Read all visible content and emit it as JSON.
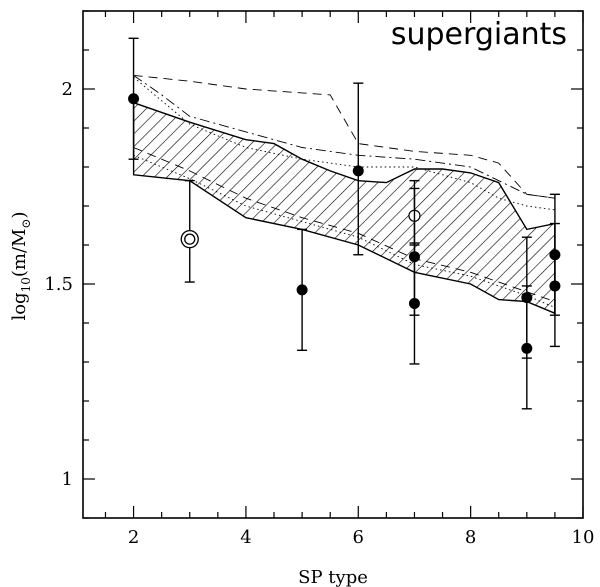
{
  "chart_data": {
    "type": "scatter",
    "title": "supergiants",
    "xlabel": "SP type",
    "ylabel": {
      "prefix": "log",
      "subscript": "10",
      "body": "(m/M",
      "sun": "⊙",
      "close": ")"
    },
    "xlim": [
      1.1,
      10.0
    ],
    "ylim": [
      0.9,
      2.2
    ],
    "x_ticks": [
      2,
      4,
      6,
      8,
      10
    ],
    "x_tick_labels": [
      "2",
      "4",
      "6",
      "8",
      "10"
    ],
    "y_ticks": [
      1,
      1.5,
      2
    ],
    "y_tick_labels": [
      "1",
      "1.5",
      "2"
    ],
    "x_minor_step": 0.5,
    "y_minor_step": 0.1,
    "band": {
      "name": "hatched model region",
      "upper": [
        [
          2.0,
          1.965
        ],
        [
          3.0,
          1.915
        ],
        [
          4.0,
          1.87
        ],
        [
          4.5,
          1.86
        ],
        [
          5.0,
          1.82
        ],
        [
          5.5,
          1.79
        ],
        [
          6.0,
          1.765
        ],
        [
          6.5,
          1.76
        ],
        [
          7.0,
          1.795
        ],
        [
          7.5,
          1.795
        ],
        [
          8.0,
          1.785
        ],
        [
          8.5,
          1.76
        ],
        [
          9.0,
          1.64
        ],
        [
          9.5,
          1.655
        ]
      ],
      "lower": [
        [
          2.0,
          1.78
        ],
        [
          3.0,
          1.765
        ],
        [
          4.0,
          1.67
        ],
        [
          5.0,
          1.64
        ],
        [
          6.0,
          1.6
        ],
        [
          7.0,
          1.53
        ],
        [
          8.0,
          1.5
        ],
        [
          8.5,
          1.46
        ],
        [
          9.0,
          1.455
        ],
        [
          9.5,
          1.425
        ]
      ]
    },
    "series": [
      {
        "name": "model dashed",
        "style": "dashed",
        "points": [
          [
            2.0,
            2.035
          ],
          [
            3.0,
            2.02
          ],
          [
            4.0,
            2.0
          ],
          [
            5.0,
            1.99
          ],
          [
            5.5,
            1.985
          ],
          [
            6.0,
            1.86
          ],
          [
            7.0,
            1.84
          ],
          [
            8.0,
            1.83
          ],
          [
            8.5,
            1.81
          ],
          [
            9.0,
            1.73
          ],
          [
            9.5,
            1.72
          ]
        ]
      },
      {
        "name": "model dash-dot",
        "style": "dashdot",
        "points": [
          [
            2.0,
            2.035
          ],
          [
            2.5,
            1.985
          ],
          [
            3.0,
            1.93
          ],
          [
            4.0,
            1.89
          ],
          [
            5.0,
            1.85
          ],
          [
            6.0,
            1.83
          ],
          [
            7.0,
            1.82
          ],
          [
            8.0,
            1.8
          ],
          [
            9.0,
            1.73
          ],
          [
            9.5,
            1.72
          ]
        ]
      },
      {
        "name": "model dotted",
        "style": "dotted",
        "points": [
          [
            2.0,
            2.03
          ],
          [
            3.0,
            1.91
          ],
          [
            4.0,
            1.85
          ],
          [
            5.0,
            1.82
          ],
          [
            6.0,
            1.8
          ],
          [
            7.0,
            1.8
          ],
          [
            8.0,
            1.76
          ],
          [
            8.5,
            1.72
          ],
          [
            9.0,
            1.7
          ],
          [
            9.5,
            1.69
          ]
        ]
      },
      {
        "name": "model dashed lower",
        "style": "dashed",
        "points": [
          [
            2.0,
            1.85
          ],
          [
            3.0,
            1.79
          ],
          [
            4.0,
            1.72
          ],
          [
            5.0,
            1.67
          ],
          [
            6.0,
            1.63
          ],
          [
            7.0,
            1.565
          ],
          [
            8.0,
            1.53
          ],
          [
            9.0,
            1.48
          ],
          [
            9.5,
            1.455
          ]
        ]
      },
      {
        "name": "model dotted lower",
        "style": "dotted",
        "points": [
          [
            2.0,
            1.83
          ],
          [
            3.0,
            1.77
          ],
          [
            4.0,
            1.7
          ],
          [
            5.0,
            1.66
          ],
          [
            6.0,
            1.62
          ],
          [
            7.0,
            1.55
          ],
          [
            8.0,
            1.52
          ],
          [
            9.0,
            1.47
          ],
          [
            9.5,
            1.44
          ]
        ]
      }
    ],
    "points": [
      {
        "x": 2.0,
        "y": 1.975,
        "err_low": 1.82,
        "err_high": 2.13,
        "marker": "filled"
      },
      {
        "x": 3.0,
        "y": 1.615,
        "err_low": 1.505,
        "err_high": 1.765,
        "marker": "double-circle"
      },
      {
        "x": 5.0,
        "y": 1.485,
        "err_low": 1.33,
        "err_high": 1.64,
        "marker": "filled"
      },
      {
        "x": 6.0,
        "y": 1.79,
        "err_low": 1.575,
        "err_high": 2.015,
        "marker": "filled"
      },
      {
        "x": 7.0,
        "y": 1.675,
        "err_low": 1.6,
        "err_high": 1.765,
        "marker": "open"
      },
      {
        "x": 7.0,
        "y": 1.57,
        "err_low": 1.42,
        "err_high": 1.745,
        "marker": "filled"
      },
      {
        "x": 7.0,
        "y": 1.45,
        "err_low": 1.295,
        "err_high": 1.605,
        "marker": "filled"
      },
      {
        "x": 9.0,
        "y": 1.465,
        "err_low": 1.31,
        "err_high": 1.62,
        "marker": "filled"
      },
      {
        "x": 9.0,
        "y": 1.335,
        "err_low": 1.18,
        "err_high": 1.495,
        "marker": "filled"
      },
      {
        "x": 9.5,
        "y": 1.575,
        "err_low": 1.42,
        "err_high": 1.73,
        "marker": "filled"
      },
      {
        "x": 9.5,
        "y": 1.495,
        "err_low": 1.34,
        "err_high": 1.655,
        "marker": "filled"
      }
    ]
  }
}
